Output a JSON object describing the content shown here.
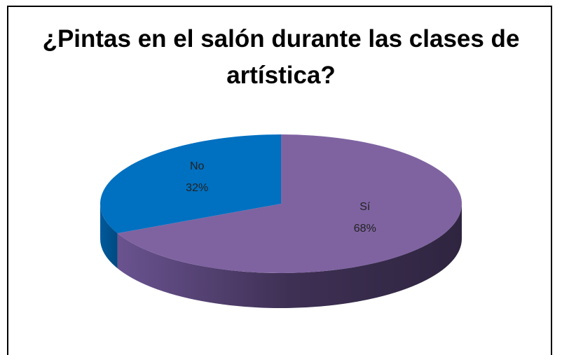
{
  "chart_data": {
    "type": "pie",
    "title": "¿Pintas en el salón durante las clases de artística?",
    "categories": [
      "Sí",
      "No"
    ],
    "values": [
      68,
      32
    ],
    "value_labels": [
      "68%",
      "32%"
    ],
    "colors": [
      "#7f63a1",
      "#0070c0"
    ],
    "style": "3d"
  }
}
